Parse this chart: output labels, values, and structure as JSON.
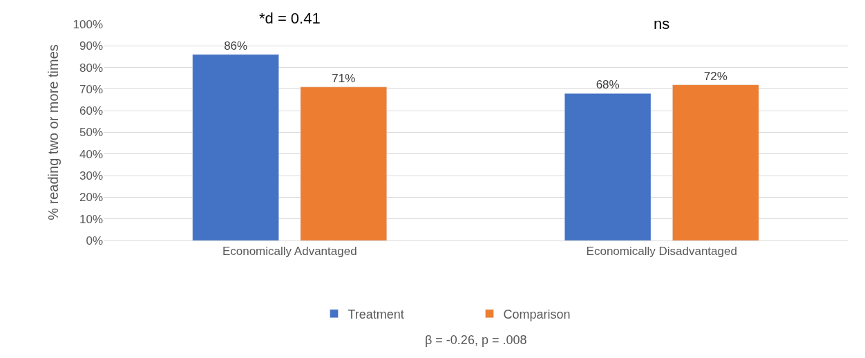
{
  "chart_data": {
    "type": "bar",
    "ylabel": "% reading two or more times",
    "categories": [
      "Economically Advantaged",
      "Economically Disadvantaged"
    ],
    "series": [
      {
        "name": "Treatment",
        "color": "#4472c4",
        "values": [
          86,
          68
        ],
        "value_labels": [
          "86%",
          "68%"
        ]
      },
      {
        "name": "Comparison",
        "color": "#ed7d31",
        "values": [
          71,
          72
        ],
        "value_labels": [
          "71%",
          "72%"
        ]
      }
    ],
    "ylim": [
      0,
      100
    ],
    "yticks": [
      {
        "value": 0,
        "label": "0%"
      },
      {
        "value": 10,
        "label": "10%"
      },
      {
        "value": 20,
        "label": "20%"
      },
      {
        "value": 30,
        "label": "30%"
      },
      {
        "value": 40,
        "label": "40%"
      },
      {
        "value": 50,
        "label": "50%"
      },
      {
        "value": 60,
        "label": "60%"
      },
      {
        "value": 70,
        "label": "70%"
      },
      {
        "value": 80,
        "label": "80%"
      },
      {
        "value": 90,
        "label": "90%"
      },
      {
        "value": 100,
        "label": "100%"
      }
    ],
    "grid": "y",
    "legend": "bottom",
    "annotations": [
      "*d = 0.41",
      "ns",
      "β = -0.26, p = .008"
    ]
  }
}
